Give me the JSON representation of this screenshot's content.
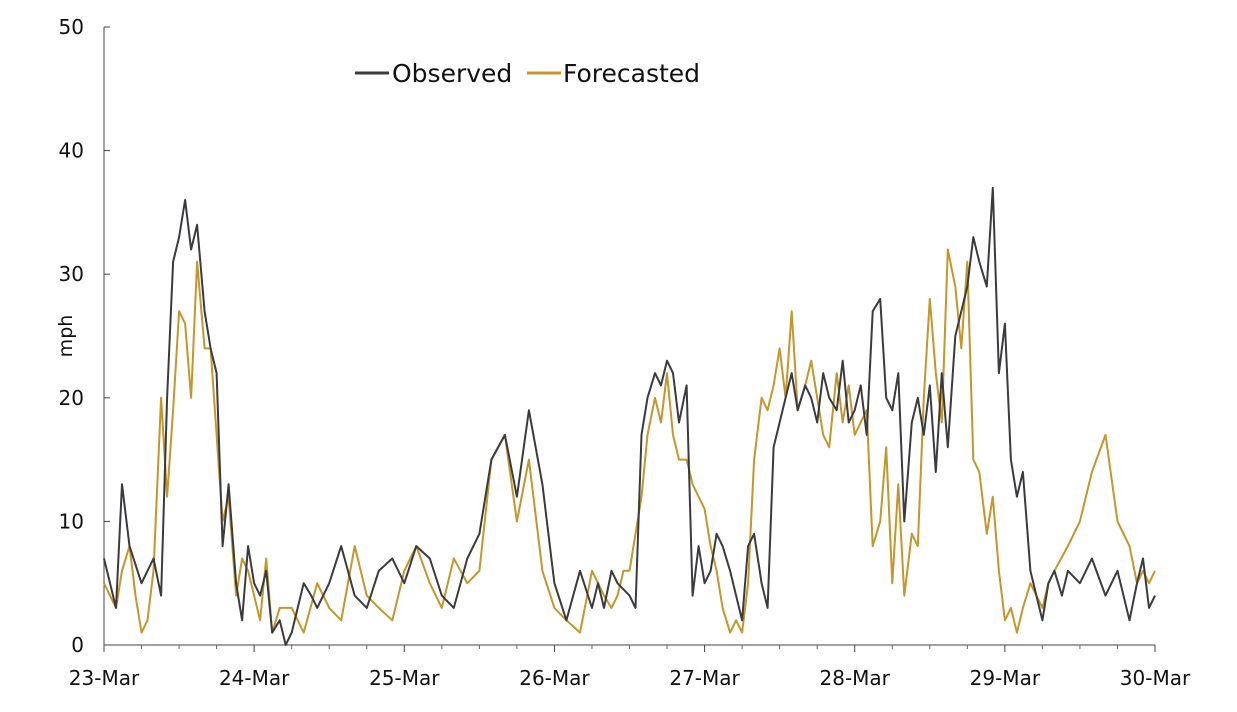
{
  "chart_data": {
    "type": "line",
    "title": "",
    "xlabel": "",
    "ylabel": "mph",
    "ylim": [
      0,
      50
    ],
    "yticks": [
      "0",
      "10",
      "20",
      "30",
      "40",
      "50"
    ],
    "xlim_days": [
      0,
      7
    ],
    "xtick_labels": [
      "23-Mar",
      "24-Mar",
      "25-Mar",
      "26-Mar",
      "27-Mar",
      "28-Mar",
      "29-Mar",
      "30-Mar"
    ],
    "grid": false,
    "legend_position": "top-center",
    "colors": {
      "observed": "#3b3b3f",
      "forecasted": "#c4962b"
    },
    "series": [
      {
        "name": "Observed",
        "x_day": [
          0,
          0.08,
          0.12,
          0.17,
          0.25,
          0.33,
          0.38,
          0.42,
          0.46,
          0.5,
          0.54,
          0.58,
          0.62,
          0.67,
          0.71,
          0.75,
          0.79,
          0.83,
          0.88,
          0.92,
          0.96,
          1.0,
          1.04,
          1.08,
          1.12,
          1.17,
          1.21,
          1.25,
          1.29,
          1.33,
          1.38,
          1.42,
          1.46,
          1.5,
          1.58,
          1.67,
          1.75,
          1.83,
          1.92,
          2.0,
          2.08,
          2.17,
          2.25,
          2.33,
          2.42,
          2.5,
          2.58,
          2.67,
          2.75,
          2.83,
          2.92,
          3.0,
          3.08,
          3.17,
          3.25,
          3.29,
          3.33,
          3.38,
          3.42,
          3.5,
          3.54,
          3.58,
          3.62,
          3.67,
          3.71,
          3.75,
          3.79,
          3.83,
          3.88,
          3.92,
          3.96,
          4.0,
          4.04,
          4.08,
          4.12,
          4.17,
          4.21,
          4.25,
          4.29,
          4.33,
          4.38,
          4.42,
          4.46,
          4.5,
          4.54,
          4.58,
          4.62,
          4.67,
          4.71,
          4.75,
          4.79,
          4.83,
          4.88,
          4.92,
          4.96,
          5.0,
          5.04,
          5.08,
          5.12,
          5.17,
          5.21,
          5.25,
          5.29,
          5.33,
          5.38,
          5.42,
          5.46,
          5.5,
          5.54,
          5.58,
          5.62,
          5.67,
          5.71,
          5.75,
          5.79,
          5.83,
          5.88,
          5.92,
          5.96,
          6.0,
          6.04,
          6.08,
          6.12,
          6.17,
          6.21,
          6.25,
          6.29,
          6.33,
          6.38,
          6.42,
          6.5,
          6.58,
          6.67,
          6.75,
          6.83,
          6.88,
          6.92,
          6.96,
          7.0
        ],
        "y_mph": [
          7,
          3,
          13,
          8,
          5,
          7,
          4,
          20,
          31,
          33,
          36,
          32,
          34,
          27,
          24,
          22,
          8,
          13,
          5,
          2,
          8,
          5,
          4,
          6,
          1,
          2,
          0,
          1,
          3,
          5,
          4,
          3,
          4,
          5,
          8,
          4,
          3,
          6,
          7,
          5,
          8,
          7,
          4,
          3,
          7,
          9,
          15,
          17,
          12,
          19,
          13,
          5,
          2,
          6,
          3,
          5,
          3,
          6,
          5,
          4,
          3,
          17,
          20,
          22,
          21,
          23,
          22,
          18,
          21,
          4,
          8,
          5,
          6,
          9,
          8,
          6,
          4,
          2,
          8,
          9,
          5,
          3,
          16,
          18,
          20,
          22,
          19,
          21,
          20,
          18,
          22,
          20,
          19,
          23,
          18,
          19,
          21,
          17,
          27,
          28,
          20,
          19,
          22,
          10,
          18,
          20,
          17,
          21,
          14,
          22,
          16,
          25,
          27,
          29,
          33,
          31,
          29,
          37,
          22,
          26,
          15,
          12,
          14,
          6,
          4,
          2,
          5,
          6,
          4,
          6,
          5,
          7,
          4,
          6,
          2,
          5,
          7,
          3,
          4
        ],
        "style": "solid"
      },
      {
        "name": "Forecasted",
        "x_day": [
          0,
          0.08,
          0.12,
          0.17,
          0.21,
          0.25,
          0.29,
          0.33,
          0.38,
          0.42,
          0.46,
          0.5,
          0.54,
          0.58,
          0.62,
          0.67,
          0.71,
          0.75,
          0.79,
          0.83,
          0.88,
          0.92,
          0.96,
          1.0,
          1.04,
          1.08,
          1.12,
          1.17,
          1.25,
          1.33,
          1.42,
          1.5,
          1.58,
          1.67,
          1.75,
          1.83,
          1.92,
          2.0,
          2.08,
          2.17,
          2.25,
          2.33,
          2.42,
          2.5,
          2.58,
          2.67,
          2.75,
          2.83,
          2.92,
          3.0,
          3.08,
          3.17,
          3.25,
          3.33,
          3.38,
          3.42,
          3.46,
          3.5,
          3.58,
          3.62,
          3.67,
          3.71,
          3.75,
          3.79,
          3.83,
          3.88,
          3.92,
          4.0,
          4.04,
          4.08,
          4.12,
          4.17,
          4.21,
          4.25,
          4.29,
          4.33,
          4.38,
          4.42,
          4.46,
          4.5,
          4.54,
          4.58,
          4.62,
          4.67,
          4.71,
          4.75,
          4.79,
          4.83,
          4.88,
          4.92,
          4.96,
          5.0,
          5.04,
          5.08,
          5.12,
          5.17,
          5.21,
          5.25,
          5.29,
          5.33,
          5.38,
          5.42,
          5.46,
          5.5,
          5.54,
          5.58,
          5.62,
          5.67,
          5.71,
          5.75,
          5.79,
          5.83,
          5.88,
          5.92,
          5.96,
          6.0,
          6.04,
          6.08,
          6.12,
          6.17,
          6.21,
          6.25,
          6.29,
          6.33,
          6.42,
          6.5,
          6.58,
          6.67,
          6.75,
          6.83,
          6.88,
          6.92,
          6.96,
          7.0
        ],
        "y_mph": [
          5,
          3,
          6,
          8,
          4,
          1,
          2,
          6,
          20,
          12,
          19,
          27,
          26,
          20,
          31,
          24,
          24,
          17,
          10,
          12,
          4,
          7,
          6,
          4,
          2,
          7,
          1,
          3,
          3,
          1,
          5,
          3,
          2,
          8,
          4,
          3,
          2,
          6,
          8,
          5,
          3,
          7,
          5,
          6,
          15,
          17,
          10,
          15,
          6,
          3,
          2,
          1,
          6,
          4,
          3,
          4,
          6,
          6,
          12,
          17,
          20,
          18,
          22,
          17,
          15,
          15,
          13,
          11,
          8,
          6,
          3,
          1,
          2,
          1,
          5,
          15,
          20,
          19,
          21,
          24,
          20,
          27,
          19,
          21,
          23,
          20,
          17,
          16,
          22,
          18,
          21,
          17,
          18,
          19,
          8,
          10,
          16,
          5,
          13,
          4,
          9,
          8,
          20,
          28,
          22,
          18,
          32,
          29,
          24,
          31,
          15,
          14,
          9,
          12,
          6,
          2,
          3,
          1,
          3,
          5,
          4,
          3,
          5,
          6,
          8,
          10,
          14,
          17,
          10,
          8,
          5,
          6,
          5,
          6
        ],
        "style": "solid"
      }
    ]
  }
}
